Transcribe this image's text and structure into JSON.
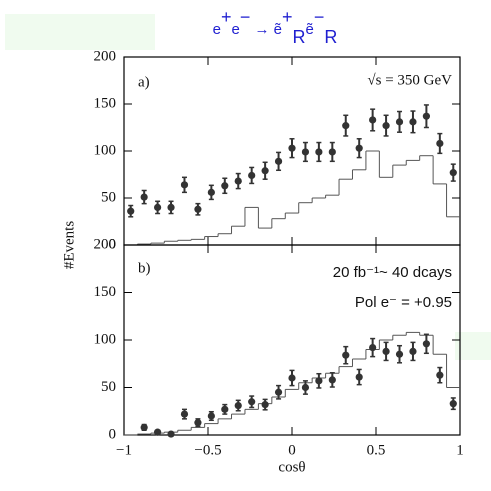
{
  "chart_data": [
    {
      "type": "errorbar",
      "title": [
        {
          "text": "e"
        },
        {
          "text": "+",
          "pos": "sup"
        },
        {
          "text": "e"
        },
        {
          "text": "−",
          "pos": "sup"
        },
        {
          "text": " → ẽ"
        },
        {
          "text": "+",
          "pos": "sup"
        },
        {
          "text": "R",
          "pos": "sub"
        },
        {
          "text": "ẽ"
        },
        {
          "text": "−",
          "pos": "sup"
        },
        {
          "text": "R",
          "pos": "sub"
        }
      ],
      "ylabel": "#Events",
      "label": "a)",
      "annotations": [
        "√s = 350 GeV"
      ],
      "x": [
        -0.96,
        -0.88,
        -0.8,
        -0.72,
        -0.64,
        -0.56,
        -0.48,
        -0.4,
        -0.32,
        -0.24,
        -0.16,
        -0.08,
        0,
        0.08,
        0.16,
        0.24,
        0.32,
        0.4,
        0.48,
        0.56,
        0.64,
        0.72,
        0.8,
        0.88,
        0.96
      ],
      "values": [
        36,
        51,
        40,
        40,
        64,
        38,
        56,
        63,
        68,
        74,
        79,
        89,
        103,
        99,
        99,
        99,
        127,
        103,
        133,
        127,
        131,
        131,
        137,
        108,
        77
      ],
      "errors": [
        6,
        7,
        6.5,
        6.5,
        8,
        6,
        7.5,
        8,
        8,
        8.5,
        9,
        9.5,
        10,
        10,
        10,
        10,
        11,
        10,
        11.5,
        11,
        11,
        11.5,
        12,
        10.5,
        9
      ],
      "bins": [
        -1,
        -0.92,
        -0.84,
        -0.76,
        -0.68,
        -0.6,
        -0.52,
        -0.44,
        -0.36,
        -0.28,
        -0.2,
        -0.12,
        -0.04,
        0.04,
        0.12,
        0.2,
        0.28,
        0.36,
        0.44,
        0.52,
        0.6,
        0.68,
        0.76,
        0.84,
        0.92,
        1
      ],
      "histogram": [
        0,
        1,
        2,
        4,
        5,
        6,
        9,
        12,
        20,
        40,
        18,
        28,
        34,
        45,
        50,
        53,
        70,
        80,
        100,
        72,
        85,
        90,
        95,
        65,
        30
      ],
      "xlim": [
        -1,
        1
      ],
      "ylim": [
        0,
        200
      ],
      "yticks": [
        0,
        50,
        100,
        150,
        200
      ],
      "color": "#333333",
      "hist_color": "#555555",
      "text_color": "#1f1fd0",
      "note_color": "#2e9a35"
    },
    {
      "type": "errorbar",
      "xlabel": "cosθ",
      "label": "b)",
      "annotations": [
        "20 fb⁻¹~ 40 dcays",
        "Pol e⁻ = +0.95"
      ],
      "x": [
        -0.96,
        -0.88,
        -0.8,
        -0.72,
        -0.64,
        -0.56,
        -0.48,
        -0.4,
        -0.32,
        -0.24,
        -0.16,
        -0.08,
        0,
        0.08,
        0.16,
        0.24,
        0.32,
        0.4,
        0.48,
        0.56,
        0.64,
        0.72,
        0.8,
        0.88,
        0.96
      ],
      "values": [
        null,
        8,
        3,
        1,
        22,
        13,
        20,
        27,
        31,
        35,
        32,
        45,
        60,
        50,
        57,
        58,
        84,
        61,
        92,
        88,
        85,
        88,
        96,
        63,
        33
      ],
      "errors": [
        null,
        3,
        2,
        1,
        5,
        4,
        4.5,
        5,
        5.5,
        6,
        5.5,
        7,
        8,
        7,
        7.5,
        7.5,
        9,
        8,
        9.5,
        9.5,
        9,
        9.5,
        10,
        8,
        6
      ],
      "bins": [
        -1,
        -0.92,
        -0.84,
        -0.76,
        -0.68,
        -0.6,
        -0.52,
        -0.44,
        -0.36,
        -0.28,
        -0.2,
        -0.12,
        -0.04,
        0.04,
        0.12,
        0.2,
        0.28,
        0.36,
        0.44,
        0.52,
        0.6,
        0.68,
        0.76,
        0.84,
        0.92,
        1
      ],
      "histogram": [
        0,
        1,
        2,
        3,
        5,
        8,
        12,
        17,
        22,
        27,
        33,
        40,
        48,
        55,
        60,
        65,
        72,
        80,
        90,
        100,
        105,
        108,
        105,
        85,
        50
      ],
      "xlim": [
        -1,
        1
      ],
      "ylim": [
        0,
        200
      ],
      "yticks": [
        0,
        50,
        100,
        150,
        200
      ],
      "xticks": [
        {
          "value": -1,
          "label": "−1"
        },
        {
          "value": -0.5,
          "label": "−0.5"
        },
        0,
        0.5,
        1
      ],
      "color": "#333333",
      "hist_color": "#555555",
      "text_color": "#1f1fd0",
      "note_color": "#2e9a35"
    }
  ]
}
